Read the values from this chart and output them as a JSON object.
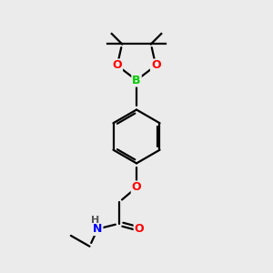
{
  "background_color": "#ebebeb",
  "bond_color": "#000000",
  "atom_colors": {
    "O": "#ff0000",
    "B": "#00cc00",
    "N": "#0000ff",
    "H": "#555555",
    "C": "#000000"
  },
  "figsize": [
    3.0,
    3.0
  ],
  "dpi": 100
}
